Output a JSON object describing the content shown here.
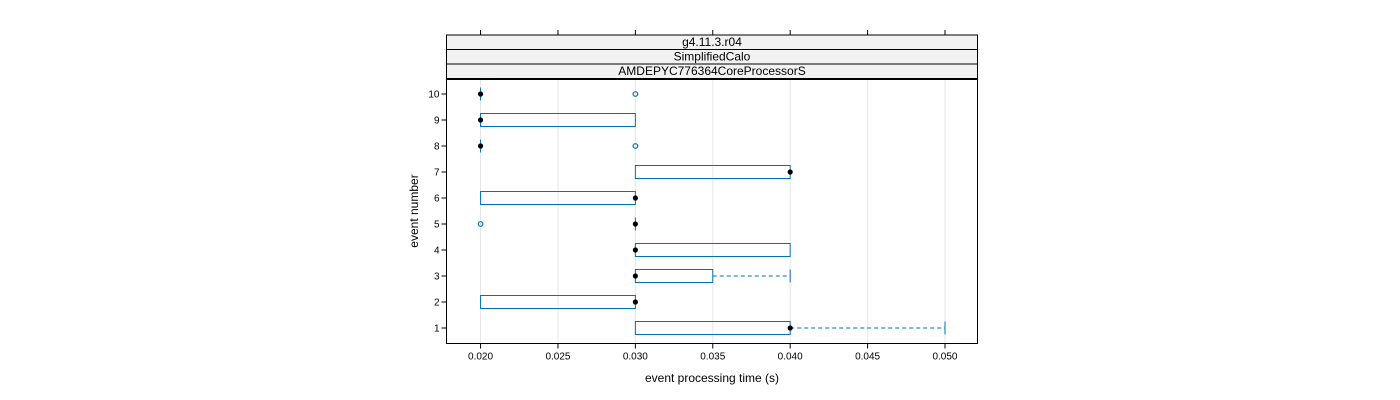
{
  "chart_data": {
    "type": "boxplot",
    "strips": [
      "g4.11.3.r04",
      "SimplifiedCalo",
      "AMDEPYC776364CoreProcessorS"
    ],
    "xlabel": "event processing time (s)",
    "ylabel": "event number",
    "xlim": [
      0.0178,
      0.0521
    ],
    "x_ticks": [
      0.02,
      0.025,
      0.03,
      0.035,
      0.04,
      0.045,
      0.05
    ],
    "x_tick_labels": [
      "0.020",
      "0.025",
      "0.030",
      "0.035",
      "0.040",
      "0.045",
      "0.050"
    ],
    "categories": [
      "1",
      "2",
      "3",
      "4",
      "5",
      "6",
      "7",
      "8",
      "9",
      "10"
    ],
    "grid": true,
    "boxes": [
      {
        "event": "1",
        "q1": 0.03,
        "median": 0.04,
        "q3": 0.04,
        "whisker_low": 0.03,
        "whisker_high": 0.05,
        "outliers": []
      },
      {
        "event": "2",
        "q1": 0.02,
        "median": 0.03,
        "q3": 0.03,
        "whisker_low": 0.02,
        "whisker_high": 0.03,
        "outliers": []
      },
      {
        "event": "3",
        "q1": 0.03,
        "median": 0.03,
        "q3": 0.035,
        "whisker_low": 0.03,
        "whisker_high": 0.04,
        "outliers": []
      },
      {
        "event": "4",
        "q1": 0.03,
        "median": 0.03,
        "q3": 0.04,
        "whisker_low": 0.03,
        "whisker_high": 0.04,
        "outliers": []
      },
      {
        "event": "5",
        "q1": 0.03,
        "median": 0.03,
        "q3": 0.03,
        "whisker_low": 0.03,
        "whisker_high": 0.03,
        "outliers": [
          0.02
        ]
      },
      {
        "event": "6",
        "q1": 0.02,
        "median": 0.03,
        "q3": 0.03,
        "whisker_low": 0.02,
        "whisker_high": 0.03,
        "outliers": []
      },
      {
        "event": "7",
        "q1": 0.03,
        "median": 0.04,
        "q3": 0.04,
        "whisker_low": 0.03,
        "whisker_high": 0.04,
        "outliers": []
      },
      {
        "event": "8",
        "q1": 0.02,
        "median": 0.02,
        "q3": 0.02,
        "whisker_low": 0.02,
        "whisker_high": 0.02,
        "outliers": [
          0.03
        ]
      },
      {
        "event": "9",
        "q1": 0.02,
        "median": 0.02,
        "q3": 0.03,
        "whisker_low": 0.02,
        "whisker_high": 0.03,
        "outliers": []
      },
      {
        "event": "10",
        "q1": 0.02,
        "median": 0.02,
        "q3": 0.02,
        "whisker_low": 0.02,
        "whisker_high": 0.02,
        "outliers": [
          0.03
        ]
      }
    ],
    "colors": {
      "box": "#0072b2",
      "median_dot": "#000000",
      "grid": "#e6e6e6",
      "strip_bg": "#f2f2f2"
    }
  }
}
